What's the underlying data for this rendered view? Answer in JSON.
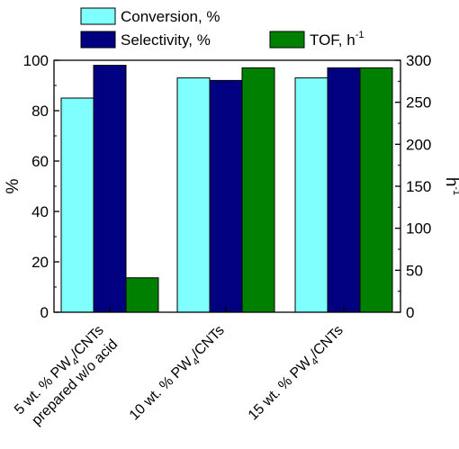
{
  "chart_data": {
    "type": "bar",
    "categories": [
      {
        "lines": [
          [
            "5 wt. % PW",
            "4",
            "/CNTs"
          ],
          [
            "prepared w/o acid"
          ]
        ]
      },
      {
        "lines": [
          [
            "10 wt. % PW",
            "4",
            "/CNTs"
          ]
        ]
      },
      {
        "lines": [
          [
            "15 wt. % PW",
            "4",
            "/CNTs"
          ]
        ]
      }
    ],
    "series": [
      {
        "name": "Conversion, %",
        "axis": "left",
        "color": "#80FFFF",
        "values": [
          85,
          93,
          93
        ]
      },
      {
        "name": "Selectivity, %",
        "axis": "left",
        "color": "#000080",
        "values": [
          98,
          92,
          97
        ]
      },
      {
        "name": "TOF, h",
        "name_sup": "-1",
        "axis": "right",
        "color": "#008000",
        "values": [
          41,
          291,
          291
        ]
      }
    ],
    "ylabel": "%",
    "y2label": "h",
    "y2label_sup": "-1",
    "ylim": [
      0,
      100
    ],
    "y2lim": [
      0,
      300
    ],
    "yticks": [
      "0",
      "20",
      "40",
      "60",
      "80",
      "100"
    ],
    "y2ticks": [
      "0",
      "50",
      "100",
      "150",
      "200",
      "250",
      "300"
    ],
    "legend_position": "top",
    "grid": false
  }
}
